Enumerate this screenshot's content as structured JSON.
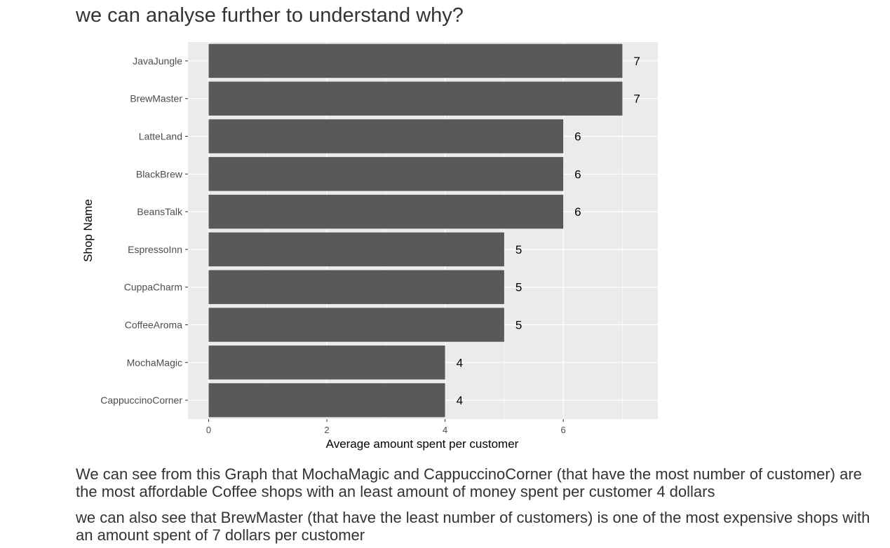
{
  "heading": "we can analyse further to understand why?",
  "chart_data": {
    "type": "bar",
    "orientation": "horizontal",
    "categories": [
      "JavaJungle",
      "BrewMaster",
      "LatteLand",
      "BlackBrew",
      "BeansTalk",
      "EspressoInn",
      "CuppaCharm",
      "CoffeeAroma",
      "MochaMagic",
      "CappuccinoCorner"
    ],
    "values": [
      7,
      7,
      6,
      6,
      6,
      5,
      5,
      5,
      4,
      4
    ],
    "data_labels": [
      "7",
      "7",
      "6",
      "6",
      "6",
      "5",
      "5",
      "5",
      "4",
      "4"
    ],
    "xlabel": "Average amount spent per customer",
    "ylabel": "Shop Name",
    "xticks": [
      0,
      2,
      4,
      6
    ],
    "xlim": [
      -0.35,
      7.6
    ],
    "grid": true,
    "legend": "none",
    "colors": {
      "bar": "#595959",
      "panel": "#ebebeb",
      "grid": "#ffffff",
      "axis_text": "#4d4d4d"
    }
  },
  "paragraphs": [
    "We can see from this Graph that MochaMagic and CappuccinoCorner (that have the most number of customer) are the most affordable Coffee shops with an least amount of money spent per customer 4 dollars",
    "we can also see that BrewMaster (that have the least number of customers) is one of the most expensive shops with an amount spent of 7 dollars per customer"
  ]
}
